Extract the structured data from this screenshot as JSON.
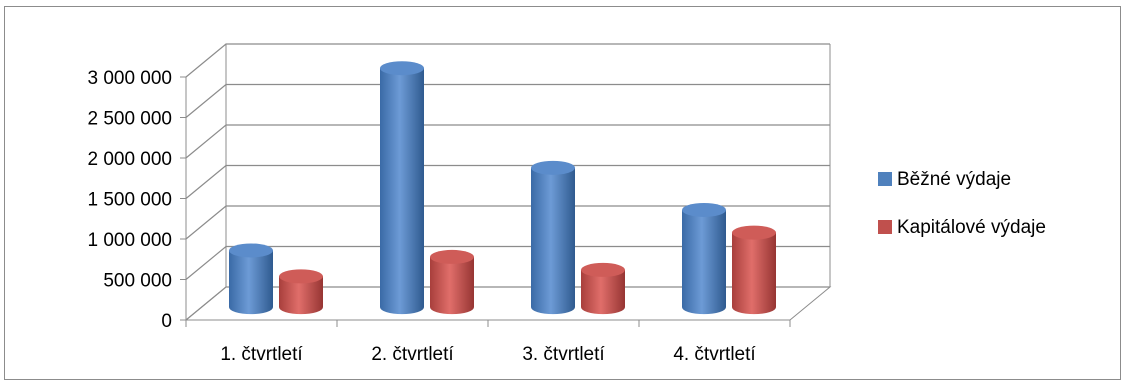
{
  "chart_data": {
    "type": "bar",
    "variant": "3d-cylinder-clustered",
    "categories": [
      "1. čtvrtletí",
      "2. čtvrtletí",
      "3. čtvrtletí",
      "4. čtvrtletí"
    ],
    "series": [
      {
        "name": "Běžné výdaje",
        "color": "#4f81bd",
        "values": [
          700000,
          2950000,
          1720000,
          1200000
        ]
      },
      {
        "name": "Kapitálové výdaje",
        "color": "#c0504d",
        "values": [
          380000,
          620000,
          460000,
          920000
        ]
      }
    ],
    "y_ticks": [
      {
        "value": 0,
        "label": "0"
      },
      {
        "value": 500000,
        "label": "500 000"
      },
      {
        "value": 1000000,
        "label": "1 000 000"
      },
      {
        "value": 1500000,
        "label": "1 500 000"
      },
      {
        "value": 2000000,
        "label": "2 000 000"
      },
      {
        "value": 2500000,
        "label": "2 500 000"
      },
      {
        "value": 3000000,
        "label": "3 000 000"
      }
    ],
    "ylim": [
      0,
      3000000
    ],
    "grid": true,
    "legend_position": "right",
    "title": "",
    "xlabel": "",
    "ylabel": ""
  }
}
